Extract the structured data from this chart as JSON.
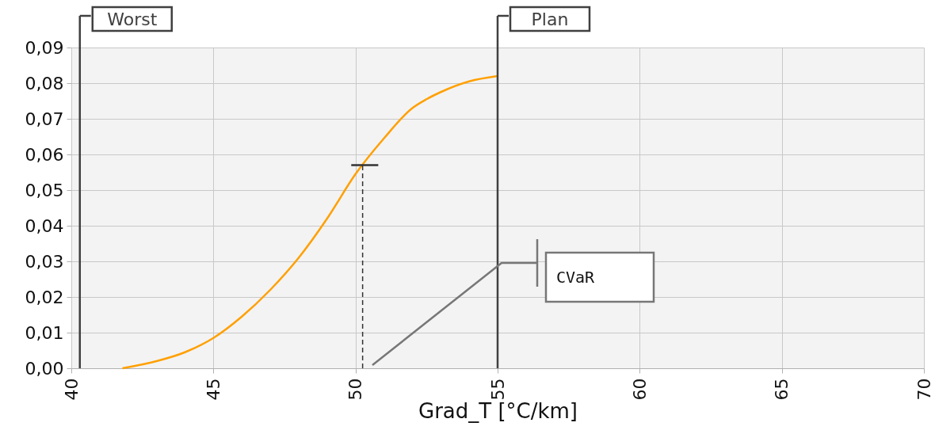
{
  "chart_data": {
    "type": "line",
    "xlabel": "Grad_T [°C/km]",
    "x": [
      41.8,
      43,
      44,
      45,
      46,
      47,
      48,
      49,
      50,
      51,
      52,
      52.5,
      53,
      54,
      55
    ],
    "series": [
      {
        "color": "#ffa000",
        "values": [
          0.0,
          0.002,
          0.0045,
          0.0085,
          0.0145,
          0.022,
          0.031,
          0.042,
          0.0545,
          0.0645,
          0.073,
          0.0755,
          0.0775,
          0.0805,
          0.082
        ]
      },
      {
        "color": "#333333",
        "x": [
          50.25,
          50.25
        ],
        "values": [
          0,
          0.057
        ],
        "line_style": "dashed"
      },
      {
        "color": "#333333",
        "x": [
          49.85,
          50.8
        ],
        "values": [
          0.057,
          0.057
        ]
      }
    ],
    "xlim": [
      40,
      70
    ],
    "xticks": [
      40,
      45,
      50,
      55,
      60,
      65,
      70
    ],
    "ylim": [
      0,
      0.09
    ],
    "yticks": [
      {
        "value": 0,
        "label": "0,00"
      },
      {
        "value": 0.01,
        "label": "0,01"
      },
      {
        "value": 0.02,
        "label": "0,02"
      },
      {
        "value": 0.03,
        "label": "0,03"
      },
      {
        "value": 0.04,
        "label": "0,04"
      },
      {
        "value": 0.05,
        "label": "0,05"
      },
      {
        "value": 0.06,
        "label": "0,06"
      },
      {
        "value": 0.07,
        "label": "0,07"
      },
      {
        "value": 0.08,
        "label": "0,08"
      },
      {
        "value": 0.09,
        "label": "0,09"
      }
    ],
    "ref_lines": [
      {
        "axis": "x",
        "value": 40.3,
        "label": "Worst",
        "color": "#404040"
      },
      {
        "axis": "x",
        "value": 55,
        "label": "Plan",
        "color": "#404040"
      }
    ],
    "annotations": [
      "CVaR"
    ],
    "grid": true
  }
}
